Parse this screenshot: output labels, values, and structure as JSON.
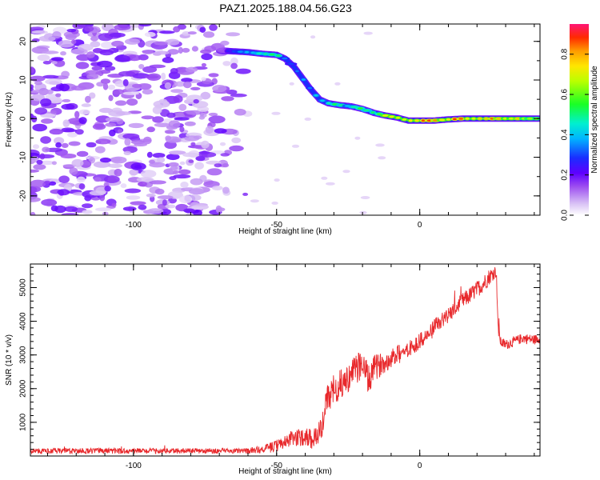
{
  "title": "PAZ1.2025.188.04.56.G23",
  "chart_data": [
    {
      "type": "heatmap",
      "xlabel": "Height of straight line (km)",
      "ylabel": "Frequency (Hz)",
      "xlim": [
        -136,
        42
      ],
      "ylim": [
        -25,
        24.5
      ],
      "xticks": [
        -100,
        -50,
        0
      ],
      "yticks": [
        -20,
        -10,
        0,
        10,
        20
      ],
      "xtick_labels": [
        "-100",
        "-50",
        "0"
      ],
      "ytick_labels": [
        "-20",
        "-10",
        "0",
        "10",
        "20"
      ],
      "colorbar": {
        "label": "Normalized spectral amplitude",
        "range": [
          0.0,
          0.95
        ],
        "ticks": [
          0.0,
          0.2,
          0.4,
          0.6,
          0.8
        ],
        "tick_labels": [
          "0.0",
          "0.2",
          "0.4",
          "0.6",
          "0.8"
        ]
      },
      "signal_track": {
        "height_km": [
          -67,
          -60,
          -55,
          -50,
          -47,
          -44,
          -41,
          -38,
          -35,
          -32,
          -28,
          -24,
          -20,
          -16,
          -12,
          -8,
          -4,
          0,
          5,
          10,
          15,
          20,
          25,
          30,
          35,
          42
        ],
        "frequency_hz": [
          17.5,
          17.2,
          16.8,
          16.5,
          15.5,
          13.5,
          10.5,
          7.5,
          5.0,
          4.0,
          3.5,
          3.2,
          2.5,
          1.5,
          0.8,
          0.3,
          -0.5,
          -0.5,
          -0.5,
          -0.2,
          0.0,
          0.0,
          0.0,
          0.0,
          0.0,
          0.0
        ],
        "amplitude": [
          0.35,
          0.5,
          0.55,
          0.6,
          0.45,
          0.4,
          0.45,
          0.4,
          0.5,
          0.55,
          0.6,
          0.5,
          0.7,
          0.6,
          0.8,
          0.85,
          0.9,
          0.95,
          0.95,
          0.95,
          0.95,
          0.95,
          0.95,
          0.95,
          0.9,
          0.85
        ]
      },
      "noise_region_height_km": [
        -136,
        -60
      ],
      "grid": false
    },
    {
      "type": "line",
      "xlabel": "Height of straight line (km)",
      "ylabel": "SNR (10 * v/v)",
      "xlim": [
        -136,
        42
      ],
      "ylim": [
        0,
        5700
      ],
      "xticks": [
        -100,
        -50,
        0
      ],
      "yticks": [
        1000,
        2000,
        3000,
        4000,
        5000
      ],
      "xtick_labels": [
        "-100",
        "-50",
        "0"
      ],
      "ytick_labels": [
        "1000",
        "2000",
        "3000",
        "4000",
        "5000"
      ],
      "series": [
        {
          "color": "#e8282b",
          "x": [
            -136,
            -120,
            -100,
            -80,
            -60,
            -55,
            -52,
            -50,
            -48,
            -45,
            -42,
            -40,
            -38,
            -36,
            -34,
            -33,
            -32,
            -30,
            -28,
            -25,
            -22,
            -20,
            -18,
            -16,
            -14,
            -12,
            -10,
            -8,
            -5,
            -2,
            0,
            3,
            6,
            9,
            12,
            15,
            18,
            20,
            22,
            24,
            26,
            27,
            28,
            30,
            33,
            36,
            40,
            42
          ],
          "y": [
            150,
            150,
            150,
            150,
            150,
            200,
            250,
            300,
            400,
            500,
            550,
            600,
            500,
            600,
            900,
            1500,
            1700,
            1900,
            2100,
            2300,
            2600,
            2800,
            2200,
            2600,
            2700,
            2800,
            2900,
            3000,
            3100,
            3300,
            3400,
            3600,
            3900,
            4100,
            4350,
            4600,
            4800,
            4950,
            5100,
            5300,
            5450,
            5500,
            3400,
            3300,
            3400,
            3500,
            3450,
            3500
          ],
          "noise_amplitude": [
            80,
            80,
            80,
            80,
            80,
            120,
            150,
            180,
            200,
            250,
            250,
            300,
            300,
            300,
            350,
            400,
            450,
            400,
            450,
            400,
            450,
            500,
            450,
            400,
            350,
            300,
            300,
            300,
            250,
            250,
            250,
            250,
            250,
            250,
            250,
            250,
            250,
            250,
            250,
            250,
            200,
            200,
            150,
            150,
            150,
            150,
            150,
            150
          ]
        }
      ],
      "grid": false
    }
  ]
}
